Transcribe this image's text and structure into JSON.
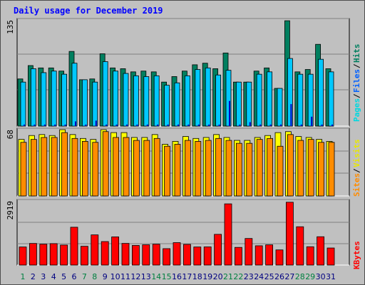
{
  "title": "Daily usage for December 2019",
  "colors": {
    "frame_bg": "#c0c0c0",
    "plot_bg": "#c0c0c0",
    "title": "#0000ff",
    "hits": "#007f5f",
    "files": "#00c8ff",
    "pages": "#00d8e0",
    "visits": "#ffff00",
    "sites": "#ff8c00",
    "kbytes": "#ff0000",
    "weekend_day": "#008040",
    "weekday_day": "#000080",
    "tick_value": "#000000"
  },
  "chart_data": [
    {
      "type": "bar",
      "panel": "top",
      "title": "Daily usage for December 2019",
      "categories": [
        "1",
        "2",
        "3",
        "4",
        "5",
        "6",
        "7",
        "8",
        "9",
        "10",
        "11",
        "12",
        "13",
        "14",
        "15",
        "16",
        "17",
        "18",
        "19",
        "20",
        "21",
        "22",
        "23",
        "24",
        "25",
        "26",
        "27",
        "28",
        "29",
        "30",
        "31"
      ],
      "ylim": [
        0,
        135
      ],
      "y_tick_label": "135",
      "series": [
        {
          "name": "Hits",
          "values": [
            60,
            77,
            74,
            74,
            70,
            95,
            59,
            60,
            92,
            74,
            73,
            69,
            70,
            69,
            56,
            63,
            70,
            78,
            80,
            73,
            93,
            56,
            56,
            70,
            74,
            48,
            134,
            69,
            72,
            104,
            73
          ]
        },
        {
          "name": "Files",
          "values": [
            56,
            73,
            68,
            70,
            66,
            80,
            59,
            56,
            82,
            70,
            67,
            64,
            63,
            64,
            52,
            55,
            64,
            72,
            74,
            65,
            71,
            56,
            56,
            66,
            69,
            48,
            86,
            66,
            66,
            85,
            69
          ]
        },
        {
          "name": "Pages",
          "values": [
            2,
            2,
            2,
            2,
            2,
            6,
            2,
            7,
            2,
            2,
            2,
            2,
            2,
            2,
            2,
            2,
            2,
            2,
            2,
            2,
            32,
            2,
            5,
            2,
            2,
            2,
            28,
            2,
            12,
            2,
            2
          ]
        }
      ],
      "legend": [
        "Pages",
        "/",
        "Files",
        "/",
        "Hits"
      ],
      "legend_position": "right"
    },
    {
      "type": "bar",
      "panel": "middle",
      "categories": [
        "1",
        "2",
        "3",
        "4",
        "5",
        "6",
        "7",
        "8",
        "9",
        "10",
        "11",
        "12",
        "13",
        "14",
        "15",
        "16",
        "17",
        "18",
        "19",
        "20",
        "21",
        "22",
        "23",
        "24",
        "25",
        "26",
        "27",
        "28",
        "29",
        "30",
        "31"
      ],
      "ylim": [
        0,
        68
      ],
      "y_tick_label": "68",
      "series": [
        {
          "name": "Visits",
          "values": [
            58,
            62,
            63,
            62,
            68,
            63,
            59,
            58,
            68,
            65,
            65,
            60,
            60,
            63,
            53,
            56,
            61,
            59,
            60,
            63,
            60,
            57,
            57,
            60,
            62,
            65,
            66,
            61,
            60,
            58,
            56
          ]
        },
        {
          "name": "Sites",
          "values": [
            55,
            58,
            60,
            60,
            65,
            59,
            56,
            55,
            66,
            60,
            60,
            57,
            57,
            59,
            51,
            53,
            57,
            56,
            57,
            59,
            57,
            54,
            54,
            58,
            59,
            51,
            63,
            57,
            58,
            55,
            55
          ]
        }
      ],
      "legend": [
        "Sites",
        "/",
        "Visits"
      ],
      "legend_position": "right"
    },
    {
      "type": "bar",
      "panel": "bottom",
      "categories": [
        "1",
        "2",
        "3",
        "4",
        "5",
        "6",
        "7",
        "8",
        "9",
        "10",
        "11",
        "12",
        "13",
        "14",
        "15",
        "16",
        "17",
        "18",
        "19",
        "20",
        "21",
        "22",
        "23",
        "24",
        "25",
        "26",
        "27",
        "28",
        "29",
        "30",
        "31"
      ],
      "ylim": [
        0,
        2919
      ],
      "y_tick_label": "2919",
      "series": [
        {
          "name": "KBytes",
          "values": [
            823,
            984,
            950,
            976,
            912,
            1722,
            855,
            1374,
            1069,
            1282,
            986,
            893,
            923,
            948,
            747,
            1021,
            940,
            823,
            827,
            1398,
            2786,
            805,
            1210,
            878,
            920,
            690,
            2860,
            1743,
            833,
            1289,
            777
          ]
        }
      ],
      "legend": [
        "KBytes"
      ],
      "legend_position": "right"
    }
  ],
  "weekend_days": [
    1,
    7,
    8,
    14,
    15,
    21,
    22,
    28,
    29
  ]
}
